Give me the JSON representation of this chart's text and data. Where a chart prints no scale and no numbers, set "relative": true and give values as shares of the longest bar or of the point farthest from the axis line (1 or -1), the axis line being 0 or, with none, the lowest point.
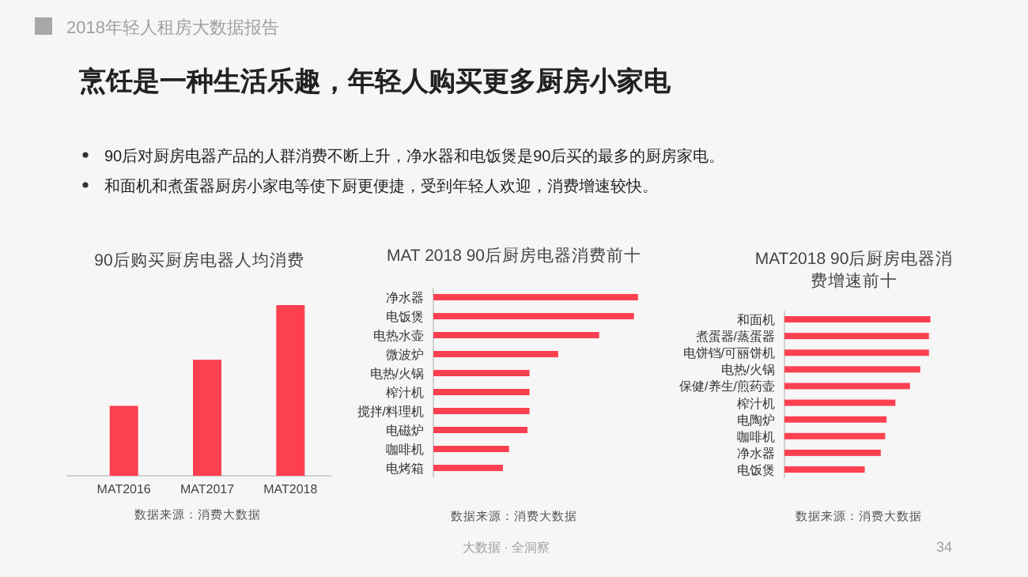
{
  "chart_data": [
    {
      "type": "other",
      "subtitle": "2018年轻人租房大数据报告",
      "title": "烹饪是一种生活乐趣，年轻人购买更多厨房小家电",
      "annotations": [
        "90后对厨房电器产品的人群消费不断上升，净水器和电饭煲是90后买的最多的厨房家电。",
        "和面机和煮蛋器厨房小家电等使下厨更便捷，受到年轻人欢迎，消费增速较快。",
        "大数据 · 全洞察",
        "34"
      ]
    },
    {
      "type": "bar",
      "relative": true,
      "title": "90后购买厨房电器人均消费",
      "categories": [
        "MAT2016",
        "MAT2017",
        "MAT2018"
      ],
      "values": [
        0.41,
        0.68,
        1
      ],
      "color": "#fd4050",
      "annotations": [
        "数据来源：消费大数据"
      ]
    },
    {
      "type": "bar",
      "relative": true,
      "orientation": "horizontal",
      "title": "MAT 2018 90后厨房电器消费前十",
      "categories": [
        "净水器",
        "电饭煲",
        "电热水壶",
        "微波炉",
        "电热/火锅",
        "榨汁机",
        "搅拌/料理机",
        "电磁炉",
        "咖啡机",
        "电烤箱"
      ],
      "values": [
        1,
        0.98,
        0.81,
        0.61,
        0.47,
        0.47,
        0.47,
        0.46,
        0.37,
        0.34
      ],
      "color": "#fd4050",
      "annotations": [
        "数据来源：消费大数据"
      ]
    },
    {
      "type": "bar",
      "relative": true,
      "orientation": "horizontal",
      "title": "MAT2018 90后厨房电器消费增速前十",
      "categories": [
        "和面机",
        "煮蛋器/蒸蛋器",
        "电饼铛/可丽饼机",
        "电热/火锅",
        "保健/养生/煎药壶",
        "榨汁机",
        "电陶炉",
        "咖啡机",
        "净水器",
        "电饭煲"
      ],
      "values": [
        1,
        0.99,
        0.99,
        0.93,
        0.86,
        0.76,
        0.7,
        0.69,
        0.66,
        0.55
      ],
      "color": "#fd4050",
      "annotations": [
        "数据来源：消费大数据"
      ]
    }
  ]
}
